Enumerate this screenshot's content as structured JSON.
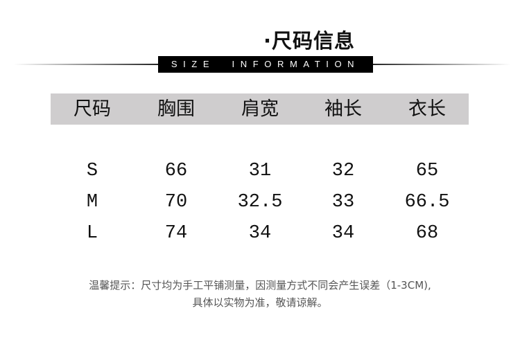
{
  "title": "·尺码信息",
  "subtitle": "SIZE  INFORMATION",
  "table": {
    "headers": [
      "尺码",
      "胸围",
      "肩宽",
      "袖长",
      "衣长"
    ],
    "rows": [
      [
        "S",
        "66",
        "31",
        "32",
        "65"
      ],
      [
        "M",
        "70",
        "32.5",
        "33",
        "66.5"
      ],
      [
        "L",
        "74",
        "34",
        "34",
        "68"
      ]
    ]
  },
  "note": {
    "line1": "温馨提示：尺寸均为手工平铺测量，因测量方式不同会产生误差（1-3CM),",
    "line2": "具体以实物为准，敬请谅解。"
  },
  "colors": {
    "header_bg": "#cfcdce",
    "band_bg": "#000000"
  }
}
